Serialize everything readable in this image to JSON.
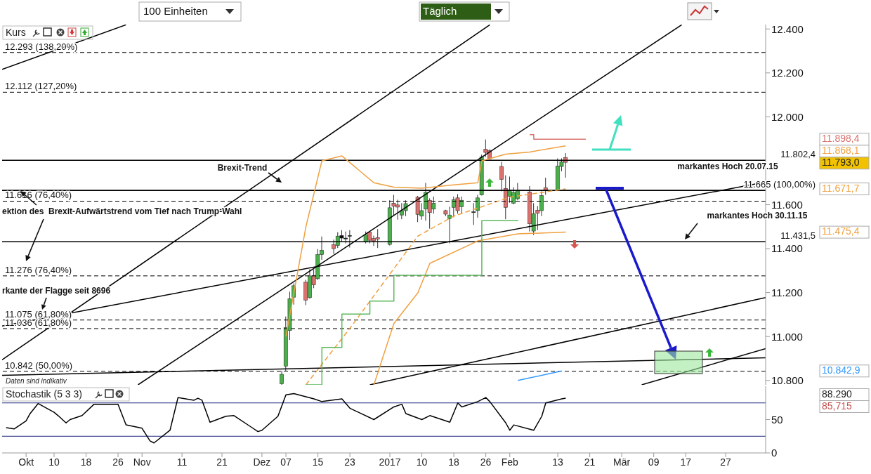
{
  "chart_data": [
    {
      "type": "candlestick",
      "title": "Kurs",
      "x": [
        "2016-12-06",
        "2016-12-07",
        "2016-12-08",
        "2016-12-09",
        "2016-12-12",
        "2016-12-13",
        "2016-12-14",
        "2016-12-15",
        "2016-12-16",
        "2016-12-19",
        "2016-12-20",
        "2016-12-21",
        "2016-12-22",
        "2016-12-23",
        "2016-12-27",
        "2016-12-28",
        "2016-12-29",
        "2016-12-30",
        "2017-01-02",
        "2017-01-03",
        "2017-01-04",
        "2017-01-05",
        "2017-01-06",
        "2017-01-09",
        "2017-01-10",
        "2017-01-11",
        "2017-01-12",
        "2017-01-13",
        "2017-01-16",
        "2017-01-17",
        "2017-01-18",
        "2017-01-19",
        "2017-01-20",
        "2017-01-23",
        "2017-01-24",
        "2017-01-25",
        "2017-01-26",
        "2017-01-27",
        "2017-01-30",
        "2017-01-31",
        "2017-02-01",
        "2017-02-02",
        "2017-02-03",
        "2017-02-06",
        "2017-02-07",
        "2017-02-08",
        "2017-02-09",
        "2017-02-10",
        "2017-02-13",
        "2017-02-14",
        "2017-02-15"
      ],
      "ohlc": [
        [
          10785,
          10844,
          10780,
          10828
        ],
        [
          10865,
          11091,
          10844,
          11040
        ],
        [
          11027,
          11204,
          10984,
          11172
        ],
        [
          11179,
          11242,
          11145,
          11231
        ],
        [
          11247,
          11258,
          11143,
          11166
        ],
        [
          11177,
          11306,
          11172,
          11276
        ],
        [
          11278,
          11306,
          11220,
          11235
        ],
        [
          11263,
          11398,
          11258,
          11373
        ],
        [
          11373,
          11455,
          11349,
          11392
        ],
        [
          11418,
          11441,
          11376,
          11400
        ],
        [
          11414,
          11475,
          11403,
          11457
        ],
        [
          11448,
          11484,
          11430,
          11460
        ],
        [
          11446,
          11478,
          11424,
          11448
        ],
        [
          11458,
          11484,
          11405,
          11460
        ],
        [
          11430,
          11478,
          11424,
          11462
        ],
        [
          11475,
          11478,
          11424,
          11438
        ],
        [
          11446,
          11459,
          11412,
          11435
        ],
        [
          11450,
          11489,
          11403,
          11444
        ],
        [
          11419,
          11620,
          11414,
          11586
        ],
        [
          11607,
          11645,
          11553,
          11593
        ],
        [
          11599,
          11623,
          11532,
          11589
        ],
        [
          11553,
          11607,
          11534,
          11573
        ],
        [
          11573,
          11620,
          11548,
          11605
        ],
        [
          11634,
          11640,
          11521,
          11556
        ],
        [
          11548,
          11607,
          11532,
          11573
        ],
        [
          11580,
          11699,
          11527,
          11656
        ],
        [
          11620,
          11629,
          11491,
          11564
        ],
        [
          11580,
          11637,
          11559,
          11607
        ],
        [
          11573,
          11577,
          11548,
          11557
        ],
        [
          11537,
          11591,
          11424,
          11553
        ],
        [
          11588,
          11637,
          11543,
          11623
        ],
        [
          11631,
          11648,
          11559,
          11573
        ],
        [
          11591,
          11637,
          11559,
          11620
        ],
        [
          11568,
          11607,
          11508,
          11566
        ],
        [
          11573,
          11645,
          11541,
          11631
        ],
        [
          11645,
          11828,
          11642,
          11817
        ],
        [
          11852,
          11897,
          11817,
          11838
        ],
        [
          11846,
          11852,
          11806,
          11809
        ],
        [
          11774,
          11795,
          11661,
          11715
        ],
        [
          11674,
          11734,
          11534,
          11588
        ],
        [
          11639,
          11728,
          11609,
          11666
        ],
        [
          11607,
          11680,
          11602,
          11656
        ],
        [
          11627,
          11699,
          11620,
          11663
        ],
        [
          11658,
          11685,
          11478,
          11513
        ],
        [
          11480,
          11607,
          11462,
          11559
        ],
        [
          11575,
          11594,
          11484,
          11561
        ],
        [
          11573,
          11661,
          11548,
          11642
        ],
        [
          11677,
          11723,
          11645,
          11666
        ],
        [
          11666,
          11811,
          11663,
          11776
        ],
        [
          11774,
          11811,
          11752,
          11795
        ],
        [
          11815,
          11835,
          11723,
          11793
        ]
      ],
      "colors": [
        "#4cae4c",
        "#4cae4c",
        "#4cae4c",
        "#4cae4c",
        "#d9726f",
        "#4cae4c",
        "#d9726f",
        "#4cae4c",
        "#4cae4c",
        "#d9726f",
        "#4cae4c",
        "#000000",
        "#000000",
        "#000000",
        "#4cae4c",
        "#d9726f",
        "#d9726f",
        "#d9726f",
        "#4cae4c",
        "#d9726f",
        "#d9726f",
        "#4cae4c",
        "#4cae4c",
        "#d9726f",
        "#4cae4c",
        "#4cae4c",
        "#d9726f",
        "#4cae4c",
        "#d9726f",
        "#4cae4c",
        "#4cae4c",
        "#d9726f",
        "#4cae4c",
        "#000000",
        "#4cae4c",
        "#4cae4c",
        "#d9726f",
        "#d9726f",
        "#d9726f",
        "#d9726f",
        "#4cae4c",
        "#4cae4c",
        "#4cae4c",
        "#d9726f",
        "#4cae4c",
        "#d9726f",
        "#4cae4c",
        "#d9726f",
        "#4cae4c",
        "#4cae4c",
        "#d9726f"
      ],
      "series": [
        {
          "type": "line",
          "color": "#000000",
          "x": [
            "2016-09-27",
            "2016-10-28"
          ],
          "values": [
            12216,
            12419
          ]
        },
        {
          "type": "line",
          "color": "#000000",
          "x": [
            "2016-09-27",
            "2017-01-27"
          ],
          "values": [
            10894,
            12419
          ]
        },
        {
          "type": "line",
          "color": "#000000",
          "x": [
            "2016-10-31",
            "2017-03-16"
          ],
          "values": [
            10780,
            12419
          ]
        },
        {
          "type": "line",
          "color": "#000000",
          "x": [
            "2016-09-27",
            "2017-04-06"
          ],
          "values": [
            11048,
            11703
          ]
        },
        {
          "type": "line",
          "color": "#000000",
          "x": [
            "2016-09-27",
            "2017-04-06"
          ],
          "values": [
            10823,
            10903
          ]
        },
        {
          "type": "line",
          "color": "#000000",
          "x": [
            "2016-12-28",
            "2017-04-06"
          ],
          "values": [
            10780,
            11177
          ]
        },
        {
          "type": "line",
          "color": "#000000",
          "x": [
            "2017-03-06",
            "2017-04-06"
          ],
          "values": [
            10780,
            10945
          ]
        },
        {
          "type": "line",
          "color": "#f0a040",
          "x": [
            "2016-12-07",
            "2016-12-12",
            "2016-12-16",
            "2016-12-21",
            "2016-12-29",
            "2017-01-03",
            "2017-01-10",
            "2017-01-18",
            "2017-01-24",
            "2017-01-25",
            "2017-01-31",
            "2017-02-06",
            "2017-02-15"
          ],
          "values": [
            11000,
            11500,
            11800,
            11822,
            11700,
            11680,
            11675,
            11690,
            11700,
            11800,
            11830,
            11840,
            11868
          ]
        },
        {
          "type": "line",
          "color": "#f0a040",
          "line_style": "dashed",
          "x": [
            "2016-12-12",
            "2016-12-23",
            "2017-01-09",
            "2017-01-18",
            "2017-02-01",
            "2017-02-15"
          ],
          "values": [
            10780,
            11037,
            11457,
            11548,
            11634,
            11672
          ]
        },
        {
          "type": "line",
          "color": "#f0a040",
          "x": [
            "2016-12-29",
            "2017-01-03",
            "2017-01-09",
            "2017-01-12",
            "2017-01-24",
            "2017-02-03",
            "2017-02-15"
          ],
          "values": [
            10780,
            11059,
            11199,
            11333,
            11435,
            11467,
            11475
          ]
        },
        {
          "type": "step",
          "color": "#5cb85c",
          "x": [
            "2016-12-12",
            "2016-12-16",
            "2016-12-21",
            "2016-12-28",
            "2017-01-03",
            "2017-01-25",
            "2017-02-03"
          ],
          "values": [
            10780,
            10950,
            11102,
            11161,
            11279,
            11527,
            11530
          ]
        },
        {
          "type": "step",
          "color": "#d9726f",
          "x": [
            "2017-02-06",
            "2017-02-07",
            "2017-02-20"
          ],
          "values": [
            11919,
            11898,
            11898
          ]
        },
        {
          "type": "line",
          "color": "#3399ff",
          "x": [
            "2017-02-03",
            "2017-02-14"
          ],
          "values": [
            10800,
            10843
          ]
        }
      ],
      "xlim": [
        "2016-09-27",
        "2017-04-06"
      ],
      "ylim": [
        10780,
        12420
      ],
      "yticks": [
        {
          "value": 10800,
          "label": "10.800"
        },
        {
          "value": 11000,
          "label": "11.000"
        },
        {
          "value": 11200,
          "label": "11.200"
        },
        {
          "value": 11400,
          "label": "11.400"
        },
        {
          "value": 11600,
          "label": "11.600"
        },
        {
          "value": 12000,
          "label": "12.000"
        },
        {
          "value": 12200,
          "label": "12.200"
        },
        {
          "value": 12400,
          "label": "12.400"
        }
      ],
      "tick_labels": "y",
      "ref_lines": [
        {
          "axis": "y",
          "value": 12293,
          "label": "12.293 (138,20%)",
          "line_style": "dashed"
        },
        {
          "axis": "y",
          "value": 12112,
          "label": "12.112 (127,20%)",
          "line_style": "dashed"
        },
        {
          "axis": "y",
          "value": 11802.4,
          "label": "11.802,4",
          "line_style": "solid"
        },
        {
          "axis": "y",
          "value": 11665,
          "label": "11.665 (100,00%)",
          "line_style": "solid"
        },
        {
          "axis": "y",
          "value": 11616,
          "label": "11.616 (76,40%)",
          "line_style": "dashed"
        },
        {
          "axis": "y",
          "value": 11431.5,
          "label": "11.431,5",
          "line_style": "solid"
        },
        {
          "axis": "y",
          "value": 11276,
          "label": "11.276 (76,40%)",
          "line_style": "dashed"
        },
        {
          "axis": "y",
          "value": 11075,
          "label": "11.075 (61,80%)",
          "line_style": "dashed"
        },
        {
          "axis": "y",
          "value": 11036,
          "label": "11.036 (61,80%)",
          "line_style": "dashed"
        },
        {
          "axis": "y",
          "value": 10842,
          "label": "10.842 (50,00%)",
          "line_style": "dashed"
        }
      ],
      "annotations": [
        "Brexit-Trend",
        "ektion des  Brexit-Aufwärtstrend vom Tief nach Trump-Wahl",
        "rkante der Flagge seit 8696",
        "markantes Hoch 20.07.15",
        "markantes Hoch 30.11.15",
        "Daten sind indikativ",
        "100 Einheiten",
        "Täglich",
        "11.898,4",
        "11.868,1",
        "11.793,0",
        "11.671,7",
        "11.475,4",
        "10.842,9"
      ]
    },
    {
      "type": "line",
      "title": "Stochastik (5 3 3)",
      "series": [
        {
          "color": "#000000",
          "x": [
            "2016-09-28",
            "2016-09-30",
            "2016-10-03",
            "2016-10-04",
            "2016-10-06",
            "2016-10-10",
            "2016-10-11",
            "2016-10-13",
            "2016-10-14",
            "2016-10-17",
            "2016-10-20",
            "2016-10-26",
            "2016-10-28",
            "2016-11-01",
            "2016-11-03",
            "2016-11-04",
            "2016-11-08",
            "2016-11-10",
            "2016-11-14",
            "2016-11-15",
            "2016-11-16",
            "2016-11-18",
            "2016-11-22",
            "2016-11-24",
            "2016-11-28",
            "2016-11-30",
            "2016-12-01",
            "2016-12-05",
            "2016-12-07",
            "2016-12-09",
            "2016-12-14",
            "2016-12-16",
            "2016-12-21",
            "2016-12-23",
            "2016-12-29",
            "2017-01-03",
            "2017-01-05",
            "2017-01-06",
            "2017-01-10",
            "2017-01-12",
            "2017-01-17",
            "2017-01-19",
            "2017-01-20",
            "2017-01-24",
            "2017-01-26",
            "2017-01-27",
            "2017-01-31",
            "2017-02-01",
            "2017-02-02",
            "2017-02-07",
            "2017-02-09",
            "2017-02-10",
            "2017-02-14",
            "2017-02-15"
          ],
          "values": [
            38,
            36,
            48,
            59,
            74,
            61,
            56,
            45,
            50,
            56,
            73,
            73,
            42,
            37,
            18,
            15,
            34,
            83,
            79,
            82,
            79,
            46,
            55,
            56,
            40,
            32,
            34,
            55,
            87,
            89,
            81,
            77,
            81,
            67,
            50,
            69,
            73,
            59,
            50,
            56,
            46,
            75,
            69,
            77,
            83,
            77,
            45,
            34,
            42,
            34,
            55,
            75,
            81,
            82
          ]
        }
      ],
      "xlim": [
        "2016-09-27",
        "2017-04-06"
      ],
      "xticks": [
        {
          "value": "2016-10-03",
          "label": "Okt"
        },
        {
          "value": "2016-10-10",
          "label": "10"
        },
        {
          "value": "2016-10-18",
          "label": "18"
        },
        {
          "value": "2016-10-26",
          "label": "26"
        },
        {
          "value": "2016-11-01",
          "label": "Nov"
        },
        {
          "value": "2016-11-11",
          "label": "11"
        },
        {
          "value": "2016-11-21",
          "label": "21"
        },
        {
          "value": "2016-12-01",
          "label": "Dez"
        },
        {
          "value": "2016-12-07",
          "label": "07"
        },
        {
          "value": "2016-12-15",
          "label": "15"
        },
        {
          "value": "2016-12-23",
          "label": "23"
        },
        {
          "value": "2017-01-02",
          "label": "2017"
        },
        {
          "value": "2017-01-10",
          "label": "10"
        },
        {
          "value": "2017-01-18",
          "label": "18"
        },
        {
          "value": "2017-01-26",
          "label": "26"
        },
        {
          "value": "2017-02-01",
          "label": "Feb"
        },
        {
          "value": "2017-02-13",
          "label": "13"
        },
        {
          "value": "2017-02-21",
          "label": "21"
        },
        {
          "value": "2017-03-01",
          "label": "Mär"
        },
        {
          "value": "2017-03-09",
          "label": "09"
        },
        {
          "value": "2017-03-17",
          "label": "17"
        },
        {
          "value": "2017-03-27",
          "label": "27"
        }
      ],
      "ylim": [
        0,
        100
      ],
      "yticks": [
        0,
        50
      ],
      "ref_lines": [
        {
          "axis": "y",
          "value": 75,
          "color": "#1f2a80"
        },
        {
          "axis": "y",
          "value": 25,
          "color": "#1f2a80"
        }
      ],
      "annotations": [
        "88.290",
        "85,715"
      ]
    }
  ]
}
